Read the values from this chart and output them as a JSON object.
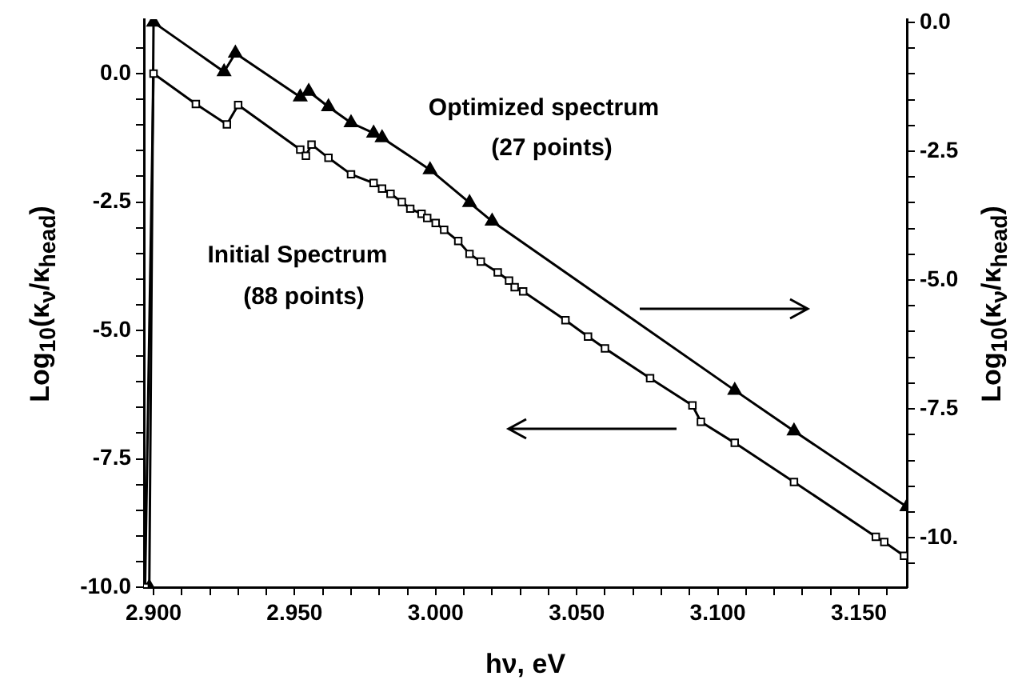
{
  "chart_data": {
    "type": "line",
    "xlabel": "hν, eV",
    "ylabel": "Log$_{10}$(κ$_{ν}$/κ$_{head}$)",
    "y2label": "Log$_{10}$(κ$_{ν}$/κ$_{head}$)",
    "xlim": [
      2.8966,
      3.167
    ],
    "ylim": [
      -10,
      1.06
    ],
    "y2lim": [
      -10.96,
      0.06
    ],
    "xticks": [
      {
        "value": 2.9,
        "label": "2.900"
      },
      {
        "value": 2.91,
        "label": null
      },
      {
        "value": 2.92,
        "label": null
      },
      {
        "value": 2.93,
        "label": null
      },
      {
        "value": 2.94,
        "label": null
      },
      {
        "value": 2.95,
        "label": "2.950"
      },
      {
        "value": 2.96,
        "label": null
      },
      {
        "value": 2.97,
        "label": null
      },
      {
        "value": 2.98,
        "label": null
      },
      {
        "value": 2.99,
        "label": null
      },
      {
        "value": 3.0,
        "label": "3.000"
      },
      {
        "value": 3.01,
        "label": null
      },
      {
        "value": 3.02,
        "label": null
      },
      {
        "value": 3.03,
        "label": null
      },
      {
        "value": 3.04,
        "label": null
      },
      {
        "value": 3.05,
        "label": "3.050"
      },
      {
        "value": 3.06,
        "label": null
      },
      {
        "value": 3.07,
        "label": null
      },
      {
        "value": 3.08,
        "label": null
      },
      {
        "value": 3.09,
        "label": null
      },
      {
        "value": 3.1,
        "label": "3.100"
      },
      {
        "value": 3.11,
        "label": null
      },
      {
        "value": 3.12,
        "label": null
      },
      {
        "value": 3.13,
        "label": null
      },
      {
        "value": 3.14,
        "label": null
      },
      {
        "value": 3.15,
        "label": "3.150"
      },
      {
        "value": 3.16,
        "label": null
      }
    ],
    "yticks": [
      {
        "value": 0.5,
        "label": null
      },
      {
        "value": 0,
        "label": "0.0"
      },
      {
        "value": -0.5,
        "label": null
      },
      {
        "value": -1,
        "label": null
      },
      {
        "value": -1.5,
        "label": null
      },
      {
        "value": -2,
        "label": null
      },
      {
        "value": -2.5,
        "label": "-2.5"
      },
      {
        "value": -3,
        "label": null
      },
      {
        "value": -3.5,
        "label": null
      },
      {
        "value": -4,
        "label": null
      },
      {
        "value": -4.5,
        "label": null
      },
      {
        "value": -5,
        "label": "-5.0"
      },
      {
        "value": -5.5,
        "label": null
      },
      {
        "value": -6,
        "label": null
      },
      {
        "value": -6.5,
        "label": null
      },
      {
        "value": -7,
        "label": null
      },
      {
        "value": -7.5,
        "label": "-7.5"
      },
      {
        "value": -8,
        "label": null
      },
      {
        "value": -8.5,
        "label": null
      },
      {
        "value": -9,
        "label": null
      },
      {
        "value": -9.5,
        "label": null
      },
      {
        "value": -10,
        "label": "-10.0"
      }
    ],
    "y2ticks": [
      {
        "value": 0,
        "label": "0.0"
      },
      {
        "value": -0.5,
        "label": null
      },
      {
        "value": -1,
        "label": null
      },
      {
        "value": -1.5,
        "label": null
      },
      {
        "value": -2,
        "label": null
      },
      {
        "value": -2.5,
        "label": "-2.5"
      },
      {
        "value": -3,
        "label": null
      },
      {
        "value": -3.5,
        "label": null
      },
      {
        "value": -4,
        "label": null
      },
      {
        "value": -4.5,
        "label": null
      },
      {
        "value": -5,
        "label": "-5.0"
      },
      {
        "value": -5.5,
        "label": null
      },
      {
        "value": -6,
        "label": null
      },
      {
        "value": -6.5,
        "label": null
      },
      {
        "value": -7,
        "label": null
      },
      {
        "value": -7.5,
        "label": "-7.5"
      },
      {
        "value": -8,
        "label": null
      },
      {
        "value": -8.5,
        "label": null
      },
      {
        "value": -9,
        "label": null
      },
      {
        "value": -9.5,
        "label": null
      },
      {
        "value": -10,
        "label": "-10."
      },
      {
        "value": -10.5,
        "label": null
      }
    ],
    "grid": false,
    "legend": false,
    "annotations": [
      "Optimized spectrum",
      "(27 points)",
      "Initial Spectrum",
      "(88 points)"
    ],
    "series": [
      {
        "color": "#000000",
        "marker": "square",
        "x": [
          2.897,
          2.9,
          2.915,
          2.926,
          2.93,
          2.952,
          2.954,
          2.956,
          2.962,
          2.97,
          2.978,
          2.981,
          2.984,
          2.988,
          2.991,
          2.995,
          2.997,
          3.0,
          3.003,
          3.008,
          3.012,
          3.016,
          3.022,
          3.026,
          3.028,
          3.031,
          3.046,
          3.054,
          3.06,
          3.076,
          3.091,
          3.094,
          3.106,
          3.127,
          3.156,
          3.159,
          3.166
        ],
        "values": [
          -10,
          0,
          -0.59,
          -0.99,
          -0.61,
          -1.48,
          -1.6,
          -1.38,
          -1.64,
          -1.96,
          -2.13,
          -2.24,
          -2.34,
          -2.5,
          -2.63,
          -2.73,
          -2.81,
          -2.91,
          -3.04,
          -3.26,
          -3.51,
          -3.66,
          -3.87,
          -4.03,
          -4.16,
          -4.24,
          -4.8,
          -5.12,
          -5.35,
          -5.93,
          -6.46,
          -6.78,
          -7.19,
          -7.95,
          -9.02,
          -9.12,
          -9.39
        ]
      },
      {
        "color": "#000000",
        "marker": "triangle",
        "axis": "y2",
        "x": [
          2.8985,
          2.9,
          2.925,
          2.929,
          2.952,
          2.955,
          2.962,
          2.97,
          2.978,
          2.981,
          2.998,
          3.012,
          3.02,
          3.106,
          3.127,
          3.167
        ],
        "values": [
          -10.96,
          0,
          -0.96,
          -0.6,
          -1.45,
          -1.34,
          -1.64,
          -1.95,
          -2.15,
          -2.24,
          -2.86,
          -3.5,
          -3.86,
          -7.14,
          -7.93,
          -9.4
        ]
      }
    ]
  }
}
